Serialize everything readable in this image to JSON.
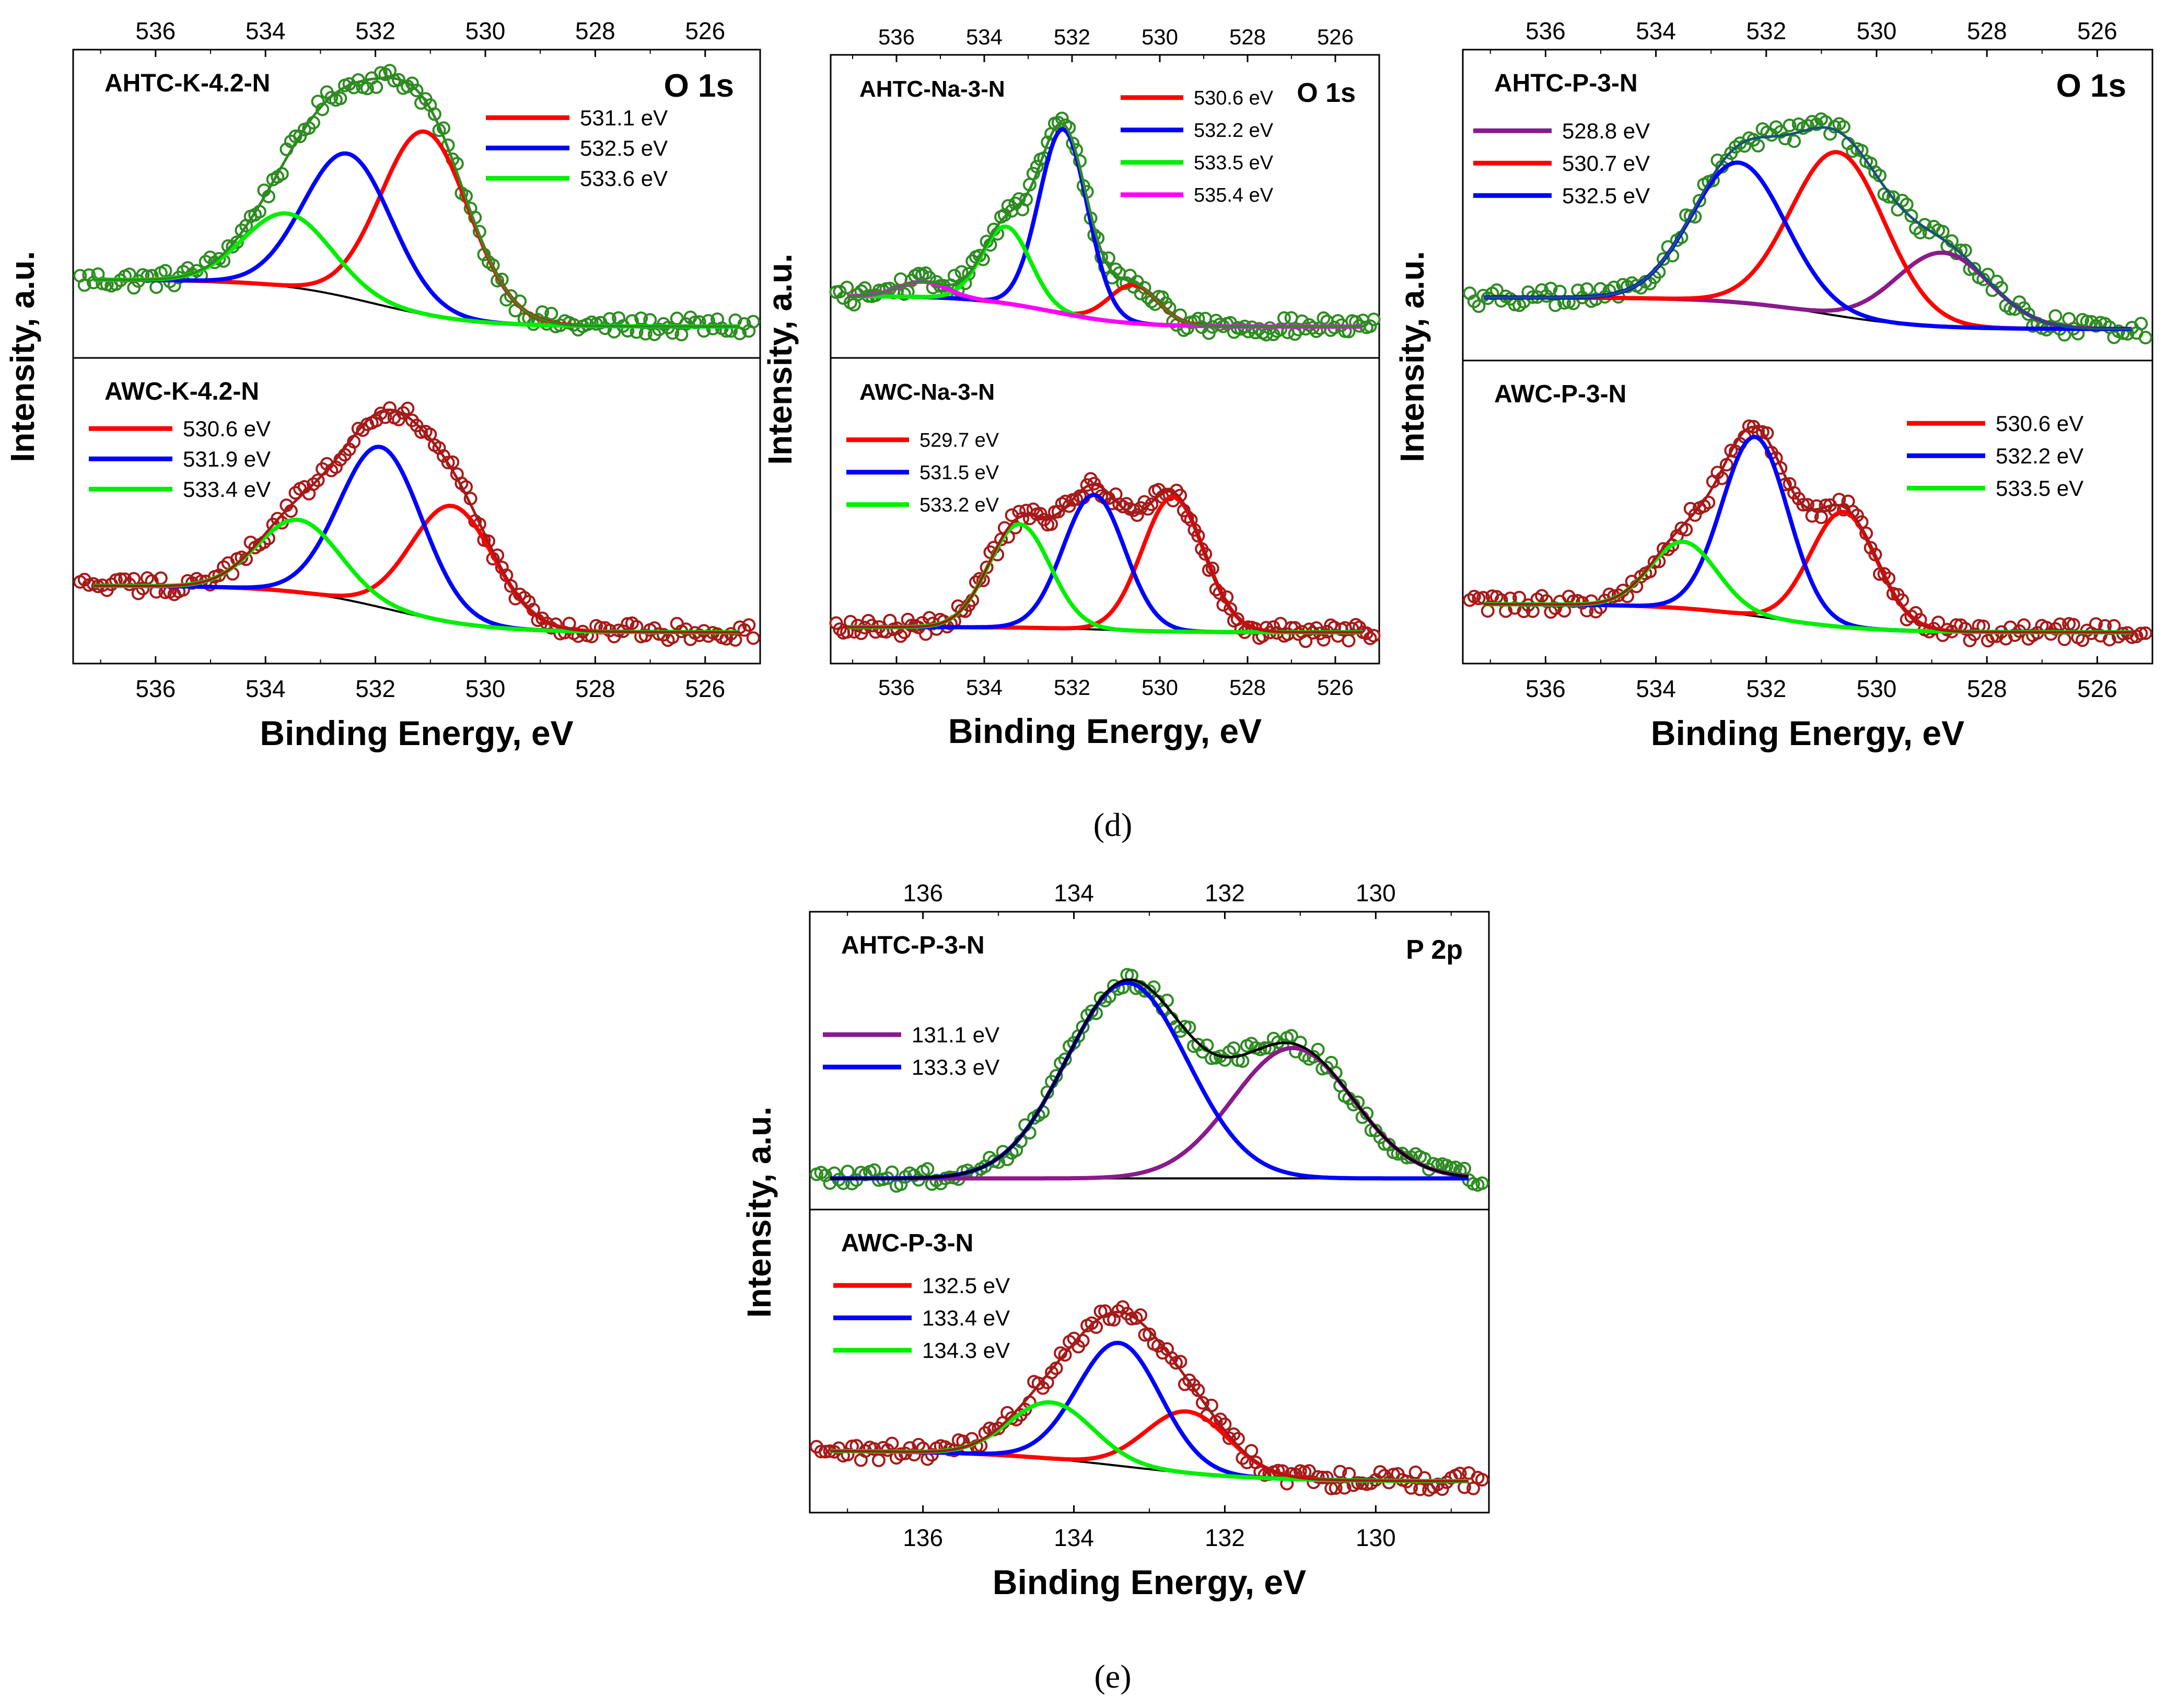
{
  "captions": {
    "d": "(d)",
    "e": "(e)"
  },
  "chart_data": [
    {
      "id": "o1s-k",
      "type": "line",
      "title": "O 1s",
      "xlabel": "Binding Energy, eV",
      "ylabel": "Intensity, a.u.",
      "xlim": [
        537.5,
        525.0
      ],
      "xticks": [
        "536",
        "534",
        "532",
        "530",
        "528",
        "526"
      ],
      "top_panel": {
        "sample": "AHTC-K-4.2-N",
        "data_color": "#2e8b22",
        "envelope_color": "#2e8b22",
        "baseline": {
          "high": 0.2,
          "low": 0.02
        },
        "peaks": [
          {
            "label": "531.1 eV",
            "center": 531.1,
            "height": 0.7,
            "width": 0.8,
            "color": "#ff0000"
          },
          {
            "label": "532.5 eV",
            "center": 532.5,
            "height": 0.55,
            "width": 0.8,
            "color": "#0000ff"
          },
          {
            "label": "533.6 eV",
            "center": 533.6,
            "height": 0.28,
            "width": 0.8,
            "color": "#00ee00"
          }
        ]
      },
      "bottom_panel": {
        "sample": "AWC-K-4.2-N",
        "data_color": "#a51a1a",
        "envelope_color": "#a51a1a",
        "baseline": {
          "high": 0.2,
          "low": 0.02
        },
        "peaks": [
          {
            "label": "530.6 eV",
            "center": 530.6,
            "height": 0.45,
            "width": 0.75,
            "color": "#ff0000"
          },
          {
            "label": "531.9 eV",
            "center": 531.9,
            "height": 0.62,
            "width": 0.75,
            "color": "#0000ff"
          },
          {
            "label": "533.4 eV",
            "center": 533.4,
            "height": 0.28,
            "width": 0.75,
            "color": "#00ee00"
          }
        ]
      }
    },
    {
      "id": "o1s-na",
      "type": "line",
      "title": "O 1s",
      "xlabel": "Binding Energy, eV",
      "ylabel": "Intensity, a.u.",
      "xlim": [
        537.5,
        525.0
      ],
      "xticks": [
        "536",
        "534",
        "532",
        "530",
        "528",
        "526"
      ],
      "top_panel": {
        "sample": "AHTC-Na-3-N",
        "data_color": "#2e8b22",
        "envelope_color": "#2e8b22",
        "baseline": {
          "high": 0.14,
          "low": 0.02
        },
        "peaks": [
          {
            "label": "530.6 eV",
            "center": 530.6,
            "height": 0.15,
            "width": 0.55,
            "color": "#ff0000"
          },
          {
            "label": "532.2 eV",
            "center": 532.2,
            "height": 0.72,
            "width": 0.55,
            "color": "#0000ff"
          },
          {
            "label": "533.5 eV",
            "center": 533.5,
            "height": 0.3,
            "width": 0.55,
            "color": "#00ee00"
          },
          {
            "label": "535.4 eV",
            "center": 535.4,
            "height": 0.06,
            "width": 0.55,
            "color": "#ff00ff"
          }
        ]
      },
      "bottom_panel": {
        "sample": "AWC-Na-3-N",
        "data_color": "#a51a1a",
        "envelope_color": "#a51a1a",
        "baseline": {
          "high": 0.04,
          "low": 0.02
        },
        "peaks": [
          {
            "label": "529.7 eV",
            "center": 529.7,
            "height": 0.52,
            "width": 0.7,
            "color": "#ff0000"
          },
          {
            "label": "531.5 eV",
            "center": 531.5,
            "height": 0.52,
            "width": 0.7,
            "color": "#0000ff"
          },
          {
            "label": "533.2 eV",
            "center": 533.2,
            "height": 0.4,
            "width": 0.7,
            "color": "#00ee00"
          }
        ]
      }
    },
    {
      "id": "o1s-p",
      "type": "line",
      "title": "O 1s",
      "xlabel": "Binding Energy, eV",
      "ylabel": "Intensity, a.u.",
      "xlim": [
        537.5,
        525.0
      ],
      "xticks": [
        "536",
        "534",
        "532",
        "530",
        "528",
        "526"
      ],
      "top_panel": {
        "sample": "AHTC-P-3-N",
        "data_color": "#2e8b22",
        "envelope_color": "#1a5276",
        "baseline": {
          "high": 0.14,
          "low": 0.02
        },
        "peaks": [
          {
            "label": "528.8 eV",
            "center": 528.8,
            "height": 0.28,
            "width": 0.85,
            "color": "#8b1a8b"
          },
          {
            "label": "530.7 eV",
            "center": 530.7,
            "height": 0.62,
            "width": 0.85,
            "color": "#ff0000"
          },
          {
            "label": "532.5 eV",
            "center": 532.5,
            "height": 0.53,
            "width": 0.85,
            "color": "#0000ff"
          }
        ]
      },
      "bottom_panel": {
        "sample": "AWC-P-3-N",
        "data_color": "#a51a1a",
        "envelope_color": "#a51a1a",
        "baseline": {
          "high": 0.13,
          "low": 0.02
        },
        "peaks": [
          {
            "label": "530.6 eV",
            "center": 530.6,
            "height": 0.45,
            "width": 0.6,
            "color": "#ff0000"
          },
          {
            "label": "532.2 eV",
            "center": 532.2,
            "height": 0.7,
            "width": 0.6,
            "color": "#0000ff"
          },
          {
            "label": "533.5 eV",
            "center": 533.5,
            "height": 0.26,
            "width": 0.6,
            "color": "#00ee00"
          }
        ]
      }
    },
    {
      "id": "p2p",
      "type": "line",
      "title": "P 2p",
      "xlabel": "Binding Energy, eV",
      "ylabel": "Intensity, a.u.",
      "xlim": [
        137.5,
        128.5
      ],
      "xticks": [
        "136",
        "134",
        "132",
        "130"
      ],
      "top_panel": {
        "sample": "AHTC-P-3-N",
        "data_color": "#2e8b22",
        "envelope_color": "#000000",
        "baseline": {
          "high": 0.02,
          "low": 0.02
        },
        "peaks": [
          {
            "label": "131.1 eV",
            "center": 131.1,
            "height": 0.52,
            "width": 0.8,
            "color": "#8b1a8b"
          },
          {
            "label": "133.3 eV",
            "center": 133.3,
            "height": 0.78,
            "width": 0.8,
            "color": "#0000ff"
          }
        ]
      },
      "bottom_panel": {
        "sample": "AWC-P-3-N",
        "data_color": "#a51a1a",
        "envelope_color": "#a51a1a",
        "baseline": {
          "high": 0.14,
          "low": 0.02
        },
        "peaks": [
          {
            "label": "132.5 eV",
            "center": 132.5,
            "height": 0.24,
            "width": 0.55,
            "color": "#ff0000"
          },
          {
            "label": "133.4 eV",
            "center": 133.4,
            "height": 0.48,
            "width": 0.55,
            "color": "#0000ff"
          },
          {
            "label": "134.3 eV",
            "center": 134.3,
            "height": 0.22,
            "width": 0.55,
            "color": "#00ee00"
          }
        ]
      }
    }
  ]
}
